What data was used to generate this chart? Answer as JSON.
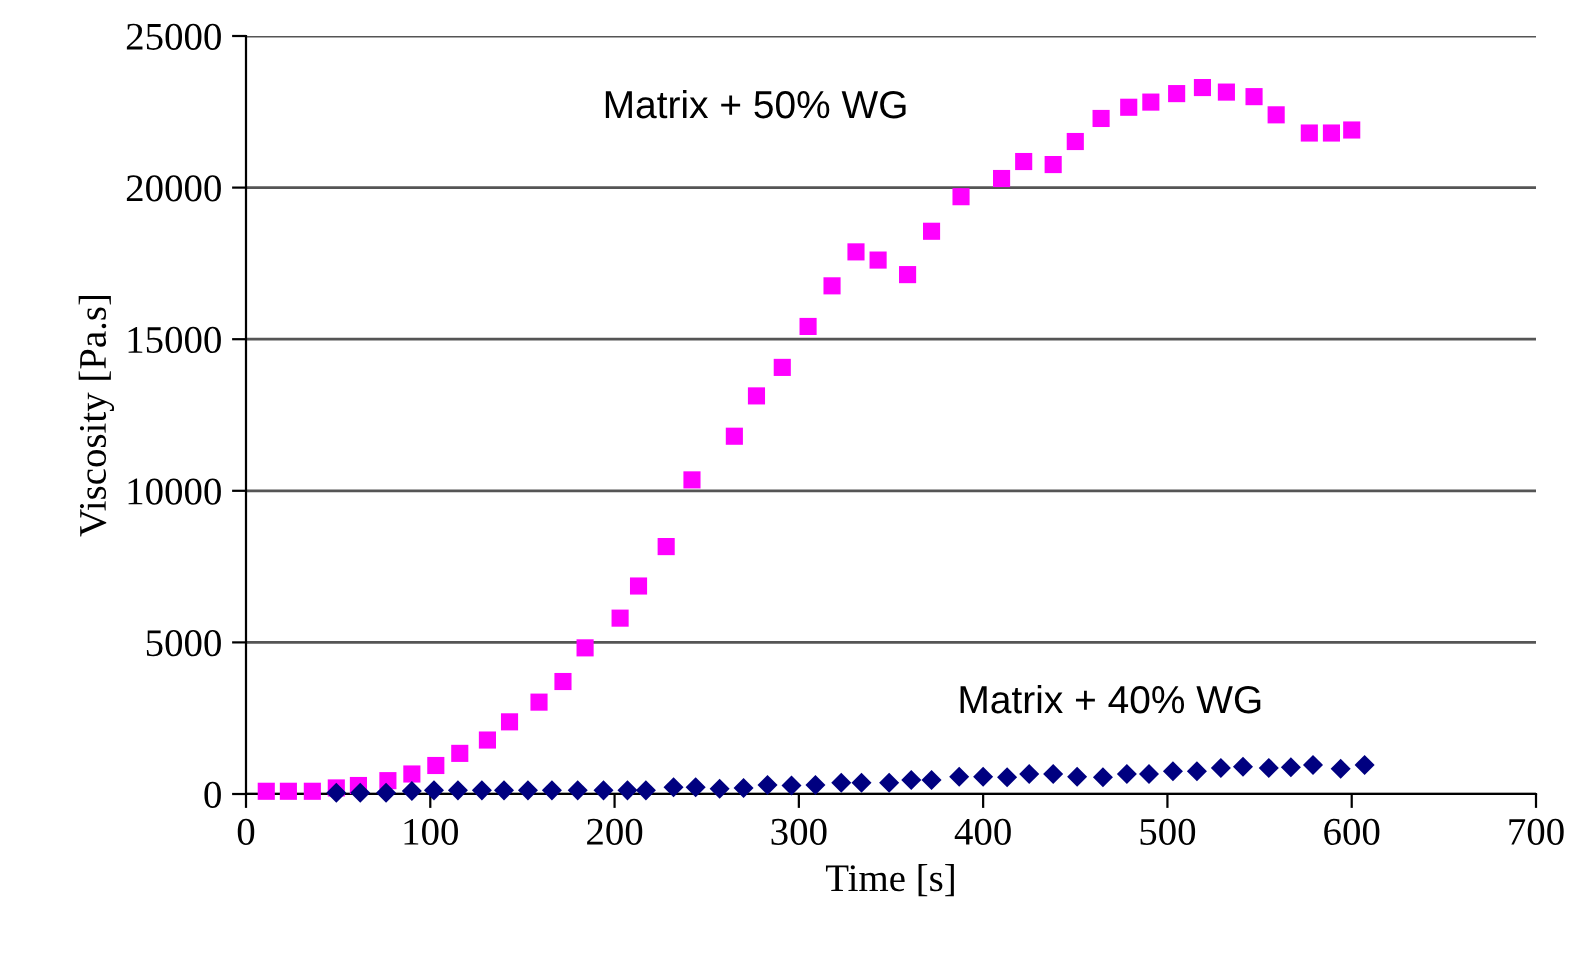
{
  "chart_data": {
    "type": "scatter",
    "xlabel": "Time [s]",
    "ylabel": "Viscosity [Pa.s]",
    "xlim": [
      0,
      700
    ],
    "xticks": [
      0,
      100,
      200,
      300,
      400,
      500,
      600,
      700
    ],
    "ylim": [
      0,
      25000
    ],
    "yticks": [
      0,
      5000,
      10000,
      15000,
      20000,
      25000
    ],
    "grid": "y",
    "legend": false,
    "series": [
      {
        "name": "Matrix + 50% WG",
        "color": "#ff00ff",
        "marker": "square",
        "x": [
          11,
          23,
          36,
          49,
          61,
          77,
          90,
          103,
          116,
          131,
          143,
          159,
          172,
          184,
          203,
          213,
          228,
          242,
          265,
          277,
          291,
          305,
          318,
          331,
          343,
          359,
          372,
          388,
          410,
          422,
          438,
          450,
          464,
          479,
          491,
          505,
          519,
          532,
          547,
          559,
          577,
          589,
          600
        ],
        "values": [
          90,
          90,
          90,
          200,
          280,
          440,
          660,
          940,
          1340,
          1780,
          2380,
          3030,
          3710,
          4820,
          5800,
          6860,
          8160,
          10360,
          11800,
          13130,
          14070,
          15420,
          16760,
          17880,
          17610,
          17130,
          18560,
          19700,
          20300,
          20860,
          20760,
          21520,
          22280,
          22650,
          22820,
          23100,
          23300,
          23150,
          23000,
          22400,
          21800,
          21800,
          21900
        ]
      },
      {
        "name": "Matrix + 40% WG",
        "color": "#000080",
        "marker": "diamond",
        "x": [
          49,
          62,
          76,
          90,
          102,
          115,
          128,
          140,
          153,
          166,
          180,
          194,
          207,
          217,
          232,
          244,
          257,
          270,
          283,
          296,
          309,
          323,
          334,
          349,
          361,
          372,
          387,
          400,
          413,
          425,
          438,
          451,
          465,
          478,
          490,
          503,
          516,
          529,
          541,
          555,
          567,
          579,
          594,
          607
        ],
        "values": [
          40,
          40,
          40,
          100,
          120,
          120,
          120,
          120,
          120,
          120,
          120,
          120,
          120,
          120,
          220,
          220,
          170,
          200,
          300,
          280,
          300,
          370,
          370,
          370,
          460,
          460,
          570,
          570,
          550,
          660,
          660,
          570,
          550,
          660,
          660,
          750,
          750,
          860,
          900,
          860,
          880,
          960,
          830,
          960
        ]
      }
    ]
  }
}
